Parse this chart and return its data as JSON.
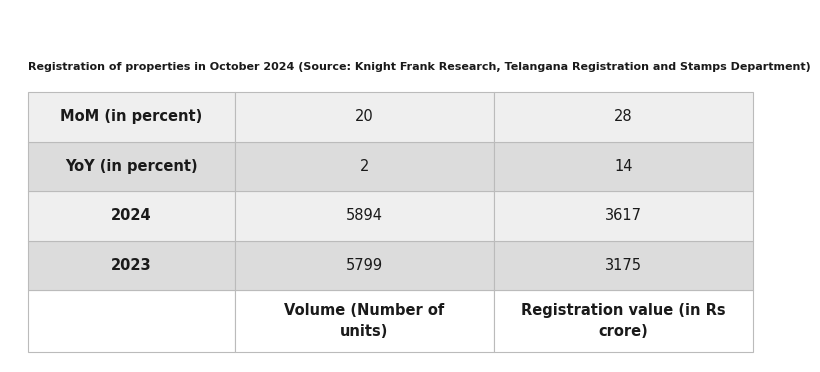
{
  "col_headers": [
    "",
    "Volume (Number of\nunits)",
    "Registration value (in Rs\ncrore)"
  ],
  "rows": [
    [
      "2023",
      "5799",
      "3175"
    ],
    [
      "2024",
      "5894",
      "3617"
    ],
    [
      "YoY (in percent)",
      "2",
      "14"
    ],
    [
      "MoM (in percent)",
      "20",
      "28"
    ]
  ],
  "row_bg_colors": [
    "#dcdcdc",
    "#efefef",
    "#dcdcdc",
    "#efefef"
  ],
  "header_bg_color": "#ffffff",
  "footer_text": "Registration of properties in October 2024 (Source: Knight Frank Research, Telangana Registration and Stamps Department)",
  "text_color": "#1a1a1a",
  "header_font_size": 10.5,
  "cell_font_size": 10.5,
  "footer_font_size": 8.0,
  "fig_bg_color": "#ffffff",
  "border_color": "#bbbbbb"
}
